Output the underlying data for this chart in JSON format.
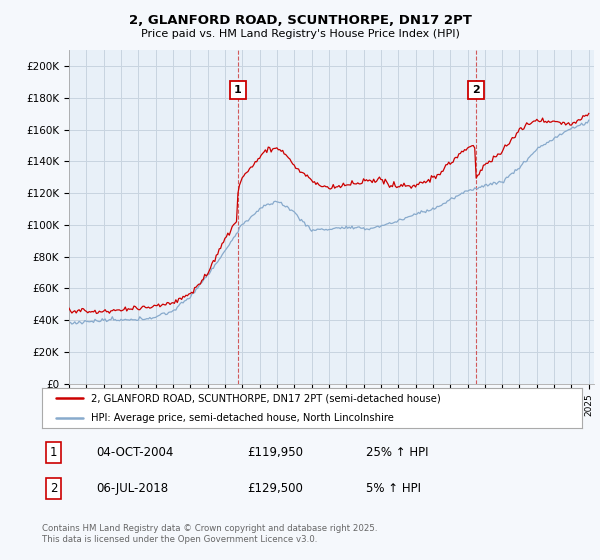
{
  "title_line1": "2, GLANFORD ROAD, SCUNTHORPE, DN17 2PT",
  "title_line2": "Price paid vs. HM Land Registry's House Price Index (HPI)",
  "ylabel_ticks": [
    "£0",
    "£20K",
    "£40K",
    "£60K",
    "£80K",
    "£100K",
    "£120K",
    "£140K",
    "£160K",
    "£180K",
    "£200K"
  ],
  "ytick_values": [
    0,
    20000,
    40000,
    60000,
    80000,
    100000,
    120000,
    140000,
    160000,
    180000,
    200000
  ],
  "ylim": [
    0,
    210000
  ],
  "red_line_color": "#cc0000",
  "blue_line_color": "#88aacc",
  "purchase1_t": 2004.75,
  "purchase1_value": 119950,
  "purchase2_t": 2018.5,
  "purchase2_value": 129500,
  "legend_red": "2, GLANFORD ROAD, SCUNTHORPE, DN17 2PT (semi-detached house)",
  "legend_blue": "HPI: Average price, semi-detached house, North Lincolnshire",
  "table_row1": [
    "1",
    "04-OCT-2004",
    "£119,950",
    "25% ↑ HPI"
  ],
  "table_row2": [
    "2",
    "06-JUL-2018",
    "£129,500",
    "5% ↑ HPI"
  ],
  "footnote": "Contains HM Land Registry data © Crown copyright and database right 2025.\nThis data is licensed under the Open Government Licence v3.0.",
  "bg_color": "#f5f8fc",
  "plot_bg_color": "#e8f0f8",
  "grid_color": "#c8d4e0"
}
